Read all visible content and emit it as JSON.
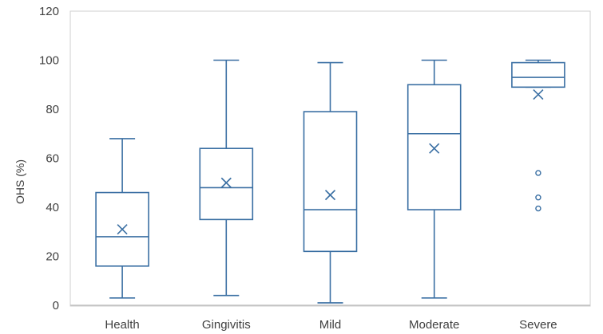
{
  "chart_data": {
    "type": "box",
    "ylabel": "OHS (%)",
    "ylim": [
      0,
      120
    ],
    "yticks": [
      0,
      20,
      40,
      60,
      80,
      100,
      120
    ],
    "grid": false,
    "colors": {
      "box": "#3a6fa3",
      "axis": "#c0c0c0",
      "frame": "#cfcfcf"
    },
    "categories": [
      "Health",
      "Gingivitis",
      "Mild",
      "Moderate",
      "Severe"
    ],
    "boxes": [
      {
        "category": "Health",
        "min": 3,
        "q1": 16,
        "median": 28,
        "q3": 46,
        "max": 68,
        "mean": 31,
        "outliers": []
      },
      {
        "category": "Gingivitis",
        "min": 4,
        "q1": 35,
        "median": 48,
        "q3": 64,
        "max": 100,
        "mean": 50,
        "outliers": []
      },
      {
        "category": "Mild",
        "min": 1,
        "q1": 22,
        "median": 39,
        "q3": 79,
        "max": 99,
        "mean": 45,
        "outliers": []
      },
      {
        "category": "Moderate",
        "min": 3,
        "q1": 39,
        "median": 70,
        "q3": 90,
        "max": 100,
        "mean": 64,
        "outliers": []
      },
      {
        "category": "Severe",
        "min": 89,
        "q1": 89,
        "median": 93,
        "q3": 99,
        "max": 100,
        "mean": 86,
        "outliers": [
          54,
          44,
          39.5
        ]
      }
    ]
  }
}
